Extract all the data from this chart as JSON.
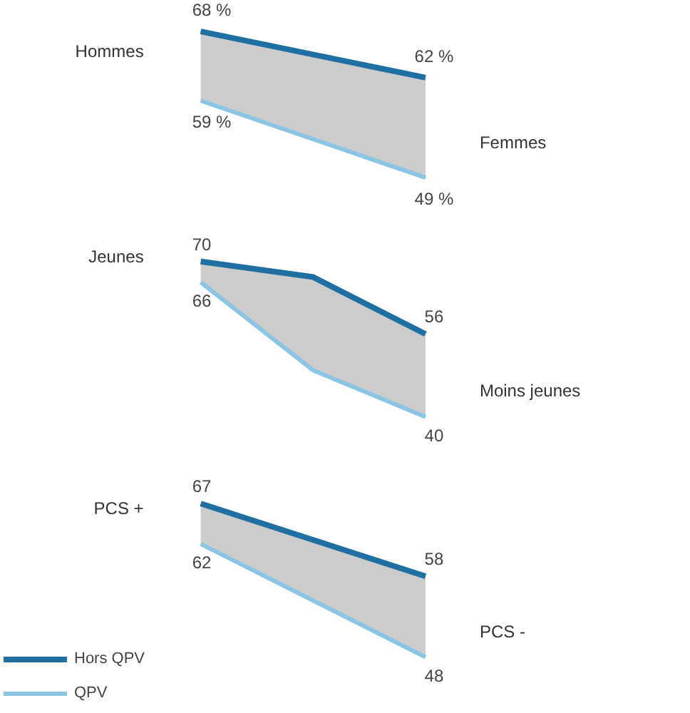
{
  "chart_data": [
    {
      "type": "line",
      "categories": [
        null,
        null
      ],
      "annotations": [
        "Hommes",
        "Femmes"
      ],
      "tick_labels": false,
      "grid": false,
      "marker": "none",
      "series": [
        {
          "color": "#1f6fa3",
          "values": [
            68,
            62
          ],
          "value_labels": [
            "68 %",
            "62 %"
          ],
          "lower": [
            59,
            49
          ],
          "upper": [
            68,
            62
          ]
        },
        {
          "color": "#8cc4e4",
          "values": [
            59,
            49
          ],
          "value_labels": [
            "59 %",
            "49 %"
          ]
        }
      ]
    },
    {
      "type": "line",
      "categories": [
        null,
        null,
        null
      ],
      "annotations": [
        "Jeunes",
        "Moins jeunes"
      ],
      "tick_labels": false,
      "grid": false,
      "marker": "none",
      "series": [
        {
          "color": "#1f6fa3",
          "values": [
            70,
            67,
            56
          ],
          "value_labels": [
            "70",
            null,
            "56"
          ],
          "lower": [
            66,
            49,
            40
          ],
          "upper": [
            70,
            67,
            56
          ]
        },
        {
          "color": "#8cc4e4",
          "values": [
            66,
            49,
            40
          ],
          "value_labels": [
            "66",
            null,
            "40"
          ]
        }
      ]
    },
    {
      "type": "line",
      "categories": [
        null,
        null
      ],
      "annotations": [
        "PCS +",
        "PCS -"
      ],
      "tick_labels": false,
      "grid": false,
      "marker": "none",
      "legend": "bottom left",
      "series": [
        {
          "name": "Hors QPV",
          "color": "#1f6fa3",
          "values": [
            67,
            58
          ],
          "value_labels": [
            "67",
            "58"
          ],
          "lower": [
            62,
            48
          ],
          "upper": [
            67,
            58
          ]
        },
        {
          "name": "QPV",
          "color": "#8cc4e4",
          "values": [
            62,
            48
          ],
          "value_labels": [
            "62",
            "48"
          ]
        }
      ]
    }
  ]
}
